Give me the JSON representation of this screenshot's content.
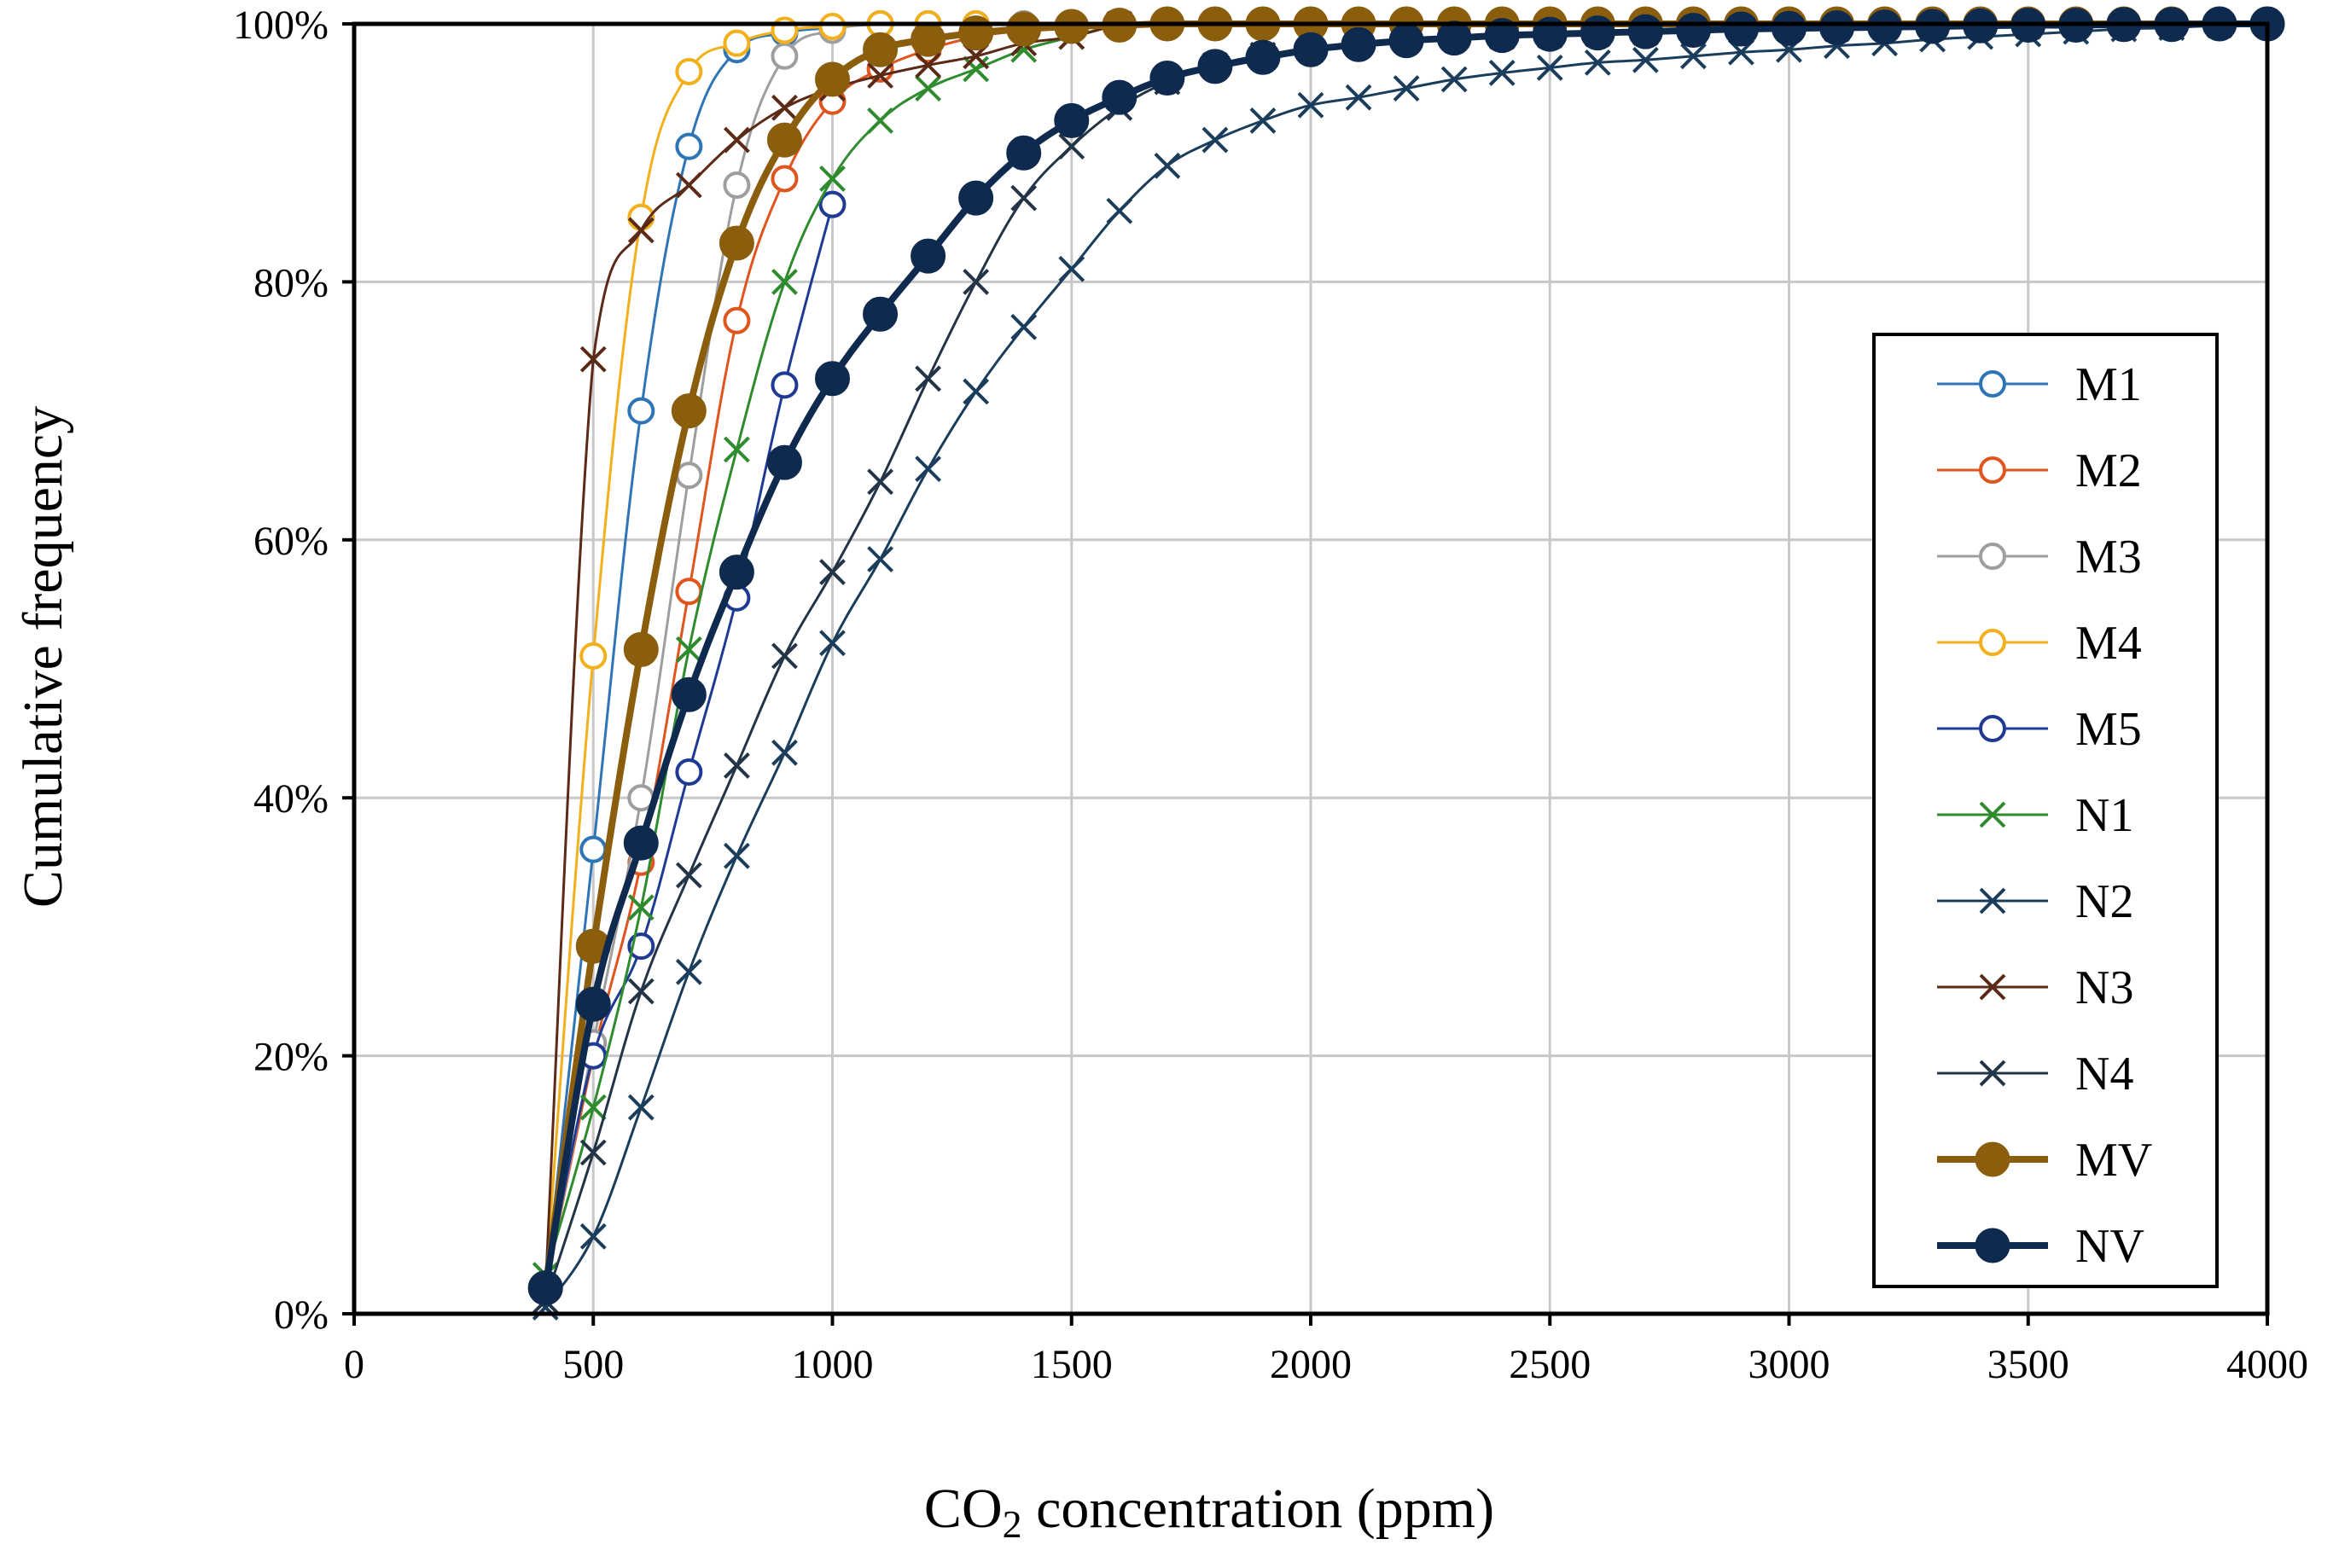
{
  "chart_data": {
    "type": "line",
    "title": "",
    "xlabel_prefix": "CO",
    "xlabel_sub": "2",
    "xlabel_suffix": " concentration (ppm)",
    "ylabel": "Cumulative frequency",
    "xlim": [
      0,
      4000
    ],
    "ylim": [
      0,
      100
    ],
    "x_ticks": [
      0,
      500,
      1000,
      1500,
      2000,
      2500,
      3000,
      3500,
      4000
    ],
    "x_tick_labels": [
      "0",
      "500",
      "1000",
      "1500",
      "2000",
      "2500",
      "3000",
      "3500",
      "4000"
    ],
    "y_ticks": [
      0,
      20,
      40,
      60,
      80,
      100
    ],
    "y_tick_labels": [
      "0%",
      "20%",
      "40%",
      "60%",
      "80%",
      "100%"
    ],
    "grid": true,
    "legend_position": "right",
    "series": [
      {
        "name": "M1",
        "color": "#2E75B6",
        "marker": "open-circle",
        "weight": "thin",
        "x": [
          400,
          500,
          600,
          700,
          800,
          900,
          1000,
          1100,
          1200,
          1300,
          1400,
          1500,
          1600
        ],
        "y": [
          2,
          36,
          70,
          90.5,
          98,
          99.3,
          99.7,
          100,
          100,
          100,
          100,
          100,
          100
        ]
      },
      {
        "name": "M2",
        "color": "#E0541D",
        "marker": "open-circle",
        "weight": "thin",
        "x": [
          400,
          500,
          600,
          700,
          800,
          900,
          1000,
          1100,
          1200,
          1300,
          1400,
          1500
        ],
        "y": [
          2,
          20,
          35,
          56,
          77,
          88,
          94,
          96.5,
          98,
          99,
          99.5,
          100
        ]
      },
      {
        "name": "M3",
        "color": "#9E9E9E",
        "marker": "open-circle",
        "weight": "thin",
        "x": [
          400,
          500,
          600,
          700,
          800,
          900,
          1000,
          1100,
          1200,
          1300,
          1400
        ],
        "y": [
          2,
          21,
          40,
          65,
          87.5,
          97.5,
          99.5,
          100,
          100,
          100,
          100
        ]
      },
      {
        "name": "M4",
        "color": "#F2B01C",
        "marker": "open-circle",
        "weight": "thin",
        "x": [
          400,
          500,
          600,
          700,
          800,
          900,
          1000,
          1100,
          1200,
          1300
        ],
        "y": [
          2,
          51,
          85,
          96.3,
          98.5,
          99.5,
          99.8,
          100,
          100,
          100
        ]
      },
      {
        "name": "M5",
        "color": "#1F3A93",
        "marker": "open-circle",
        "weight": "thin",
        "x": [
          400,
          500,
          600,
          700,
          800,
          900,
          1000
        ],
        "y": [
          2,
          20,
          28.5,
          42,
          55.5,
          72,
          86
        ]
      },
      {
        "name": "N1",
        "color": "#2E8B2E",
        "marker": "x",
        "weight": "thin",
        "x": [
          400,
          500,
          600,
          700,
          800,
          900,
          1000,
          1100,
          1200,
          1300,
          1400,
          1500,
          1600
        ],
        "y": [
          3,
          16,
          31.5,
          51.5,
          67,
          80,
          88,
          92.5,
          95,
          96.5,
          98,
          99,
          100
        ]
      },
      {
        "name": "N2",
        "color": "#1B3D5C",
        "marker": "x",
        "weight": "thin",
        "x": [
          400,
          500,
          600,
          700,
          800,
          900,
          1000,
          1100,
          1200,
          1300,
          1400,
          1500,
          1600,
          1700,
          1800,
          1900,
          2000,
          2100,
          2200,
          2300,
          2400,
          2500,
          2600,
          2700,
          2800,
          2900,
          3000,
          3100,
          3200,
          3300,
          3400,
          3500,
          3600,
          3700,
          3800,
          3900,
          4000
        ],
        "y": [
          0.5,
          6,
          16,
          26.5,
          35.5,
          43.5,
          52,
          58.5,
          65.5,
          71.5,
          76.5,
          81,
          85.5,
          89,
          91,
          92.5,
          93.7,
          94.3,
          95,
          95.7,
          96.2,
          96.6,
          97,
          97.2,
          97.5,
          97.8,
          98,
          98.3,
          98.5,
          98.8,
          99,
          99.2,
          99.4,
          99.6,
          99.7,
          99.9,
          100
        ]
      },
      {
        "name": "N3",
        "color": "#5B2A17",
        "marker": "x",
        "weight": "thin",
        "x": [
          400,
          500,
          600,
          700,
          800,
          900,
          1000,
          1100,
          1200,
          1300,
          1400,
          1500,
          1600
        ],
        "y": [
          2,
          74,
          84,
          87.5,
          91,
          93.5,
          95,
          96,
          96.8,
          97.5,
          98.5,
          99,
          100
        ]
      },
      {
        "name": "N4",
        "color": "#243447",
        "marker": "x",
        "weight": "thin",
        "x": [
          400,
          500,
          600,
          700,
          800,
          900,
          1000,
          1100,
          1200,
          1300,
          1400,
          1500,
          1600,
          1700,
          1800,
          1900,
          2000,
          2100,
          2200,
          2300,
          2400,
          2500,
          2600,
          2700,
          2800,
          2900,
          3000,
          3100,
          3200,
          3300,
          3400,
          3500,
          3600,
          3700,
          3800,
          3900,
          4000
        ],
        "y": [
          1,
          12.5,
          25,
          34,
          42.5,
          51,
          57.5,
          64.5,
          72.5,
          80,
          86.5,
          90.5,
          93.5,
          95.5,
          96.8,
          97.6,
          98,
          98.4,
          98.7,
          98.9,
          99,
          99.1,
          99.2,
          99.3,
          99.4,
          99.5,
          99.6,
          99.6,
          99.7,
          99.7,
          99.8,
          99.8,
          99.9,
          99.9,
          99.9,
          100,
          100
        ]
      },
      {
        "name": "MV",
        "color": "#8B5E0E",
        "marker": "filled-circle",
        "weight": "thick",
        "x": [
          400,
          500,
          600,
          700,
          800,
          900,
          1000,
          1100,
          1200,
          1300,
          1400,
          1500,
          1600,
          1700,
          1800,
          1900,
          2000,
          2100,
          2200,
          2300,
          2400,
          2500,
          2600,
          2700,
          2800,
          2900,
          3000,
          3100,
          3200,
          3300,
          3400,
          3500,
          3600,
          3700,
          3800,
          3900,
          4000
        ],
        "y": [
          2,
          28.5,
          51.5,
          70,
          83,
          91,
          95.7,
          98,
          98.8,
          99.3,
          99.6,
          99.8,
          99.9,
          100,
          100,
          100,
          100,
          100,
          100,
          100,
          100,
          100,
          100,
          100,
          100,
          100,
          100,
          100,
          100,
          100,
          100,
          100,
          100,
          100,
          100,
          100,
          100
        ]
      },
      {
        "name": "NV",
        "color": "#0F2A4F",
        "marker": "filled-circle",
        "weight": "thick",
        "x": [
          400,
          500,
          600,
          700,
          800,
          900,
          1000,
          1100,
          1200,
          1300,
          1400,
          1500,
          1600,
          1700,
          1800,
          1900,
          2000,
          2100,
          2200,
          2300,
          2400,
          2500,
          2600,
          2700,
          2800,
          2900,
          3000,
          3100,
          3200,
          3300,
          3400,
          3500,
          3600,
          3700,
          3800,
          3900,
          4000
        ],
        "y": [
          2,
          24,
          36.5,
          48,
          57.5,
          66,
          72.5,
          77.5,
          82,
          86.5,
          90,
          92.5,
          94.3,
          95.8,
          96.7,
          97.4,
          98,
          98.4,
          98.7,
          98.9,
          99.1,
          99.2,
          99.3,
          99.4,
          99.5,
          99.6,
          99.65,
          99.7,
          99.75,
          99.8,
          99.85,
          99.9,
          99.9,
          99.95,
          99.95,
          100,
          100
        ]
      }
    ]
  }
}
